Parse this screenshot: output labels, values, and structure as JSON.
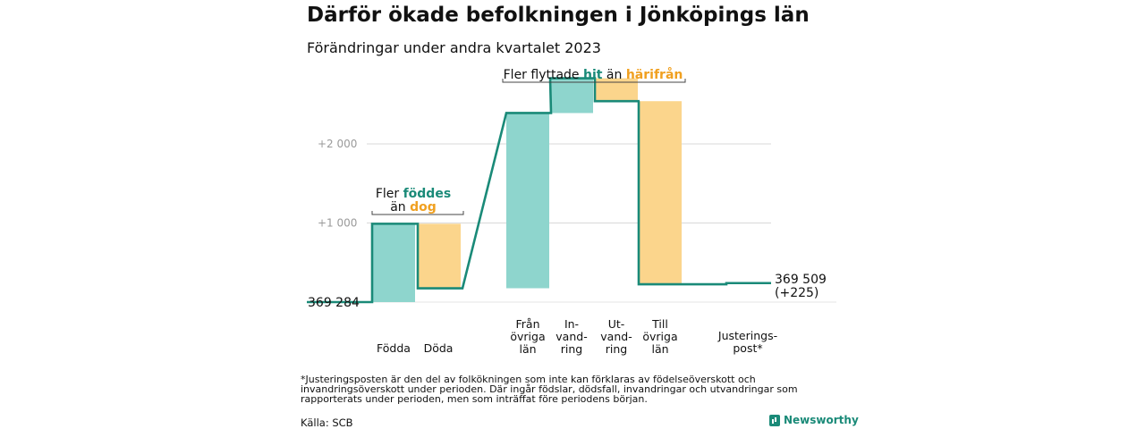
{
  "header": {
    "title": "Därför ökade befolkningen i Jönköpings län",
    "subtitle": "Förändringar under andra kvartalet 2023"
  },
  "chart_data": {
    "type": "waterfall",
    "start_value": 369284,
    "start_label": "369 284",
    "end_value": 369509,
    "end_label": "369 509",
    "end_change_label": "(+225)",
    "ylim": [
      -150,
      2650
    ],
    "gridlines": [
      2000,
      1000
    ],
    "tick_labels": [
      "+2 000",
      "+1 000"
    ],
    "steps": [
      {
        "label": [
          "Födda"
        ],
        "delta": 990,
        "kind": "increase"
      },
      {
        "label": [
          "Döda"
        ],
        "delta": -815,
        "kind": "decrease"
      },
      {
        "label": [
          "Från",
          "övriga",
          "län"
        ],
        "delta": 2215,
        "kind": "increase"
      },
      {
        "label": [
          "In-",
          "vand-",
          "ring"
        ],
        "delta": 440,
        "kind": "increase"
      },
      {
        "label": [
          "Ut-",
          "vand-",
          "ring"
        ],
        "delta": -290,
        "kind": "decrease"
      },
      {
        "label": [
          "Till",
          "övriga",
          "län"
        ],
        "delta": -2315,
        "kind": "decrease"
      },
      {
        "label": [
          "Justerings-",
          "post*"
        ],
        "delta": 0,
        "kind": "adjustment"
      }
    ],
    "annotations": [
      {
        "parts": [
          [
            "Fler ",
            "plain"
          ],
          [
            "föddes",
            "increase"
          ]
        ],
        "parts2": [
          [
            "än ",
            "plain"
          ],
          [
            "dog",
            "decrease"
          ]
        ]
      },
      {
        "parts": [
          [
            "Fler flyttade ",
            "plain"
          ],
          [
            "hit",
            "increase"
          ],
          [
            " än ",
            "plain"
          ],
          [
            "härifrån",
            "decrease"
          ]
        ]
      }
    ],
    "colors": {
      "increase": "#8ed5cd",
      "decrease": "#fbd58c",
      "line": "#1a8a78",
      "increase_text": "#1a8a78",
      "decrease_text": "#f0a020",
      "grid": "#d9d9d9",
      "tick_text": "#9a9a9a"
    }
  },
  "footer": {
    "footnote": "*Justeringsposten är den del av folkökningen som inte kan förklaras av födelseöverskott och invandringsöverskott under perioden. Där ingår födslar, dödsfall, invandringar och utvandringar som rapporterats under perioden, men som inträffat före periodens början.",
    "source": "Källa: SCB",
    "brand": "Newsworthy"
  }
}
